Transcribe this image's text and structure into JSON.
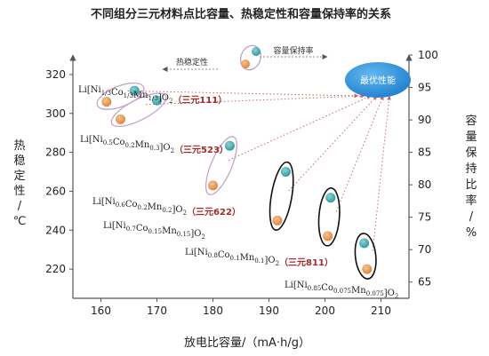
{
  "chart_data": {
    "type": "scatter",
    "title": "不同组分三元材料点比容量、热稳定性和容量保持率的关系",
    "xlabel": "放电比容量/（mA·h/g）",
    "ylabel_left": "热稳定性/℃",
    "ylabel_right": "容量保持比率/%",
    "xlim": [
      155,
      215
    ],
    "ylim_left": [
      205,
      330
    ],
    "ylim_right": [
      62.5,
      100
    ],
    "xticks": [
      "160",
      "170",
      "180",
      "190",
      "200",
      "210"
    ],
    "yticks_left": [
      "220",
      "240",
      "260",
      "280",
      "300",
      "320"
    ],
    "yticks_right": [
      "65",
      "70",
      "75",
      "80",
      "85",
      "90",
      "95",
      "100"
    ],
    "legend": {
      "thermal": "热稳定性",
      "retention": "容量保持率",
      "thermal_color": "#e8954a",
      "retention_color": "#3aa3a8"
    },
    "best": {
      "label": "最优性能",
      "color": "#2f8fd8"
    },
    "materials": [
      {
        "name": "Li[Ni1/3Co1/3Mn1/3]O2",
        "tag": "（三元111）",
        "capacity_thermal": 161,
        "thermal": 306,
        "capacity_retention": 166,
        "retention": 94.5
      },
      {
        "name": "Li[Ni0.5Co0.2Mn0.3]O2",
        "tag": "（三元523）",
        "capacity_thermal": 163.5,
        "thermal": 297,
        "capacity_retention": 170,
        "retention": 93
      },
      {
        "name": "Li[Ni0.6Co0.2Mn0.2]O2",
        "tag": "（三元622）",
        "capacity_thermal": 180,
        "thermal": 263,
        "capacity_retention": 183,
        "retention": 86
      },
      {
        "name": "Li[Ni0.7Co0.15Mn0.15]O2",
        "tag": "",
        "capacity_thermal": 191.5,
        "thermal": 245,
        "capacity_retention": 193,
        "retention": 82
      },
      {
        "name": "Li[Ni0.8Co0.1Mn0.1]O2",
        "tag": "（三元811）",
        "capacity_thermal": 200.5,
        "thermal": 237,
        "capacity_retention": 201,
        "retention": 78
      },
      {
        "name": "Li[Ni0.85Co0.075Mn0.075]O2",
        "tag": "",
        "capacity_thermal": 207.5,
        "thermal": 220,
        "capacity_retention": 207,
        "retention": 71
      }
    ]
  }
}
